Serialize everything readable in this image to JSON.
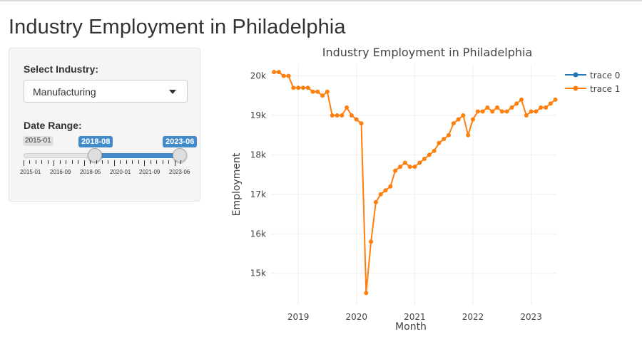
{
  "page": {
    "title": "Industry Employment in Philadelphia"
  },
  "sidebar": {
    "industry_label": "Select Industry:",
    "industry_value": "Manufacturing",
    "date_label": "Date Range:",
    "slider": {
      "min_label": "2015-01",
      "from_label": "2018-08",
      "to_label": "2023-06",
      "tick_labels": [
        "2015-01",
        "2016-09",
        "2018-05",
        "2020-01",
        "2021-09",
        "2023-06"
      ],
      "range": {
        "min": "2015-01",
        "max": "2023-06",
        "from": "2018-08",
        "to": "2023-06"
      }
    }
  },
  "chart_data": {
    "type": "line",
    "title": "Industry Employment in Philadelphia",
    "xlabel": "Month",
    "ylabel": "Employment",
    "x_ticks": [
      "2019",
      "2020",
      "2021",
      "2022",
      "2023"
    ],
    "y_ticks": [
      "15k",
      "16k",
      "17k",
      "18k",
      "19k",
      "20k"
    ],
    "y_tick_values": [
      15000,
      16000,
      17000,
      18000,
      19000,
      20000
    ],
    "xlim": [
      "2018-08",
      "2023-06"
    ],
    "ylim": [
      14200,
      20300
    ],
    "grid": true,
    "legend_position": "top-right",
    "series": [
      {
        "name": "trace 0",
        "color": "#1f77b4",
        "values": []
      },
      {
        "name": "trace 1",
        "color": "#ff7f0e",
        "x": [
          "2018-08",
          "2018-09",
          "2018-10",
          "2018-11",
          "2018-12",
          "2019-01",
          "2019-02",
          "2019-03",
          "2019-04",
          "2019-05",
          "2019-06",
          "2019-07",
          "2019-08",
          "2019-09",
          "2019-10",
          "2019-11",
          "2019-12",
          "2020-01",
          "2020-02",
          "2020-03",
          "2020-04",
          "2020-05",
          "2020-06",
          "2020-07",
          "2020-08",
          "2020-09",
          "2020-10",
          "2020-11",
          "2020-12",
          "2021-01",
          "2021-02",
          "2021-03",
          "2021-04",
          "2021-05",
          "2021-06",
          "2021-07",
          "2021-08",
          "2021-09",
          "2021-10",
          "2021-11",
          "2021-12",
          "2022-01",
          "2022-02",
          "2022-03",
          "2022-04",
          "2022-05",
          "2022-06",
          "2022-07",
          "2022-08",
          "2022-09",
          "2022-10",
          "2022-11",
          "2022-12",
          "2023-01",
          "2023-02",
          "2023-03",
          "2023-04",
          "2023-05",
          "2023-06"
        ],
        "values": [
          20100,
          20100,
          20000,
          20000,
          19700,
          19700,
          19700,
          19700,
          19600,
          19600,
          19500,
          19600,
          19000,
          19000,
          19000,
          19200,
          19000,
          18900,
          18800,
          14500,
          15800,
          16800,
          17000,
          17100,
          17200,
          17600,
          17700,
          17800,
          17700,
          17700,
          17800,
          17900,
          18000,
          18100,
          18300,
          18400,
          18500,
          18800,
          18900,
          19000,
          18500,
          18900,
          19100,
          19100,
          19200,
          19100,
          19200,
          19100,
          19100,
          19200,
          19300,
          19400,
          19000,
          19100,
          19100,
          19200,
          19200,
          19300,
          19400
        ]
      }
    ]
  }
}
